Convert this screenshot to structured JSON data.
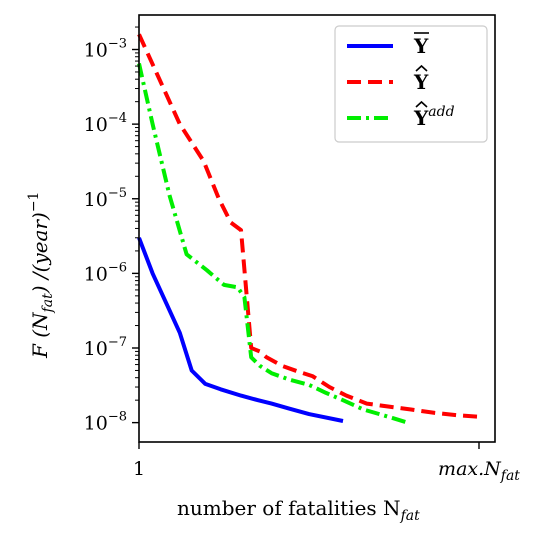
{
  "chart_data": {
    "type": "line",
    "xlabel": "number of fatalities N",
    "xlabel_sub": "fat",
    "ylabel": "F (N",
    "ylabel_sub": "fat",
    "ylabel_tail": ") /(year)",
    "ylabel_sup": "−1",
    "y_scale": "log",
    "ylim": [
      5.5e-09,
      0.0029
    ],
    "x_ticks": [
      {
        "x": 0.0,
        "label": "1",
        "sub": "",
        "italic": false
      },
      {
        "x": 1.0,
        "label": "max.N",
        "sub": "fat",
        "italic": true
      }
    ],
    "y_ticks": [
      {
        "y": 0.001,
        "exp": "−3"
      },
      {
        "y": 0.0001,
        "exp": "−4"
      },
      {
        "y": 1e-05,
        "exp": "−5"
      },
      {
        "y": 1e-06,
        "exp": "−6"
      },
      {
        "y": 1e-07,
        "exp": "−7"
      },
      {
        "y": 1e-08,
        "exp": "−8"
      }
    ],
    "y_tick_base": "10",
    "grid": false,
    "legend_position": "top-right",
    "series": [
      {
        "name": "Y",
        "accent": "bar",
        "color": "#0000ff",
        "dash": "solid",
        "x": [
          0.0,
          0.04,
          0.08,
          0.12,
          0.155,
          0.195,
          0.24,
          0.3,
          0.35,
          0.39,
          0.44,
          0.5,
          0.6
        ],
        "y": [
          3e-06,
          1e-06,
          4e-07,
          1.6e-07,
          5e-08,
          3.3e-08,
          2.8e-08,
          2.3e-08,
          2e-08,
          1.8e-08,
          1.55e-08,
          1.3e-08,
          1.05e-08
        ]
      },
      {
        "name": "Y",
        "accent": "hat",
        "color": "#ff0000",
        "dash": "dashed",
        "x": [
          0.0,
          0.06,
          0.12,
          0.19,
          0.235,
          0.27,
          0.3,
          0.33,
          0.355,
          0.375,
          0.42,
          0.47,
          0.51,
          0.56,
          0.61,
          0.67,
          0.73,
          0.8,
          0.87,
          0.94,
          1.0
        ],
        "y": [
          0.0016,
          0.0004,
          0.0001,
          3.2e-05,
          1e-05,
          4.8e-06,
          3.8e-06,
          1e-07,
          9e-08,
          7.5e-08,
          5.8e-08,
          4.8e-08,
          4.2e-08,
          3e-08,
          2.3e-08,
          1.8e-08,
          1.65e-08,
          1.5e-08,
          1.35e-08,
          1.25e-08,
          1.2e-08
        ]
      },
      {
        "name": "Y",
        "accent": "hat",
        "sup": "add",
        "color": "#00ee00",
        "dash": "dashdot",
        "x": [
          0.0,
          0.04,
          0.09,
          0.14,
          0.2,
          0.25,
          0.29,
          0.31,
          0.33,
          0.355,
          0.39,
          0.44,
          0.5,
          0.55,
          0.6,
          0.66,
          0.72,
          0.79
        ],
        "y": [
          0.00065,
          0.0001,
          1.1e-05,
          1.8e-06,
          1.1e-06,
          7e-07,
          6.5e-07,
          4.8e-07,
          7.5e-08,
          5.8e-08,
          4.6e-08,
          3.8e-08,
          3.2e-08,
          2.5e-08,
          2e-08,
          1.5e-08,
          1.25e-08,
          1e-08
        ]
      }
    ]
  }
}
